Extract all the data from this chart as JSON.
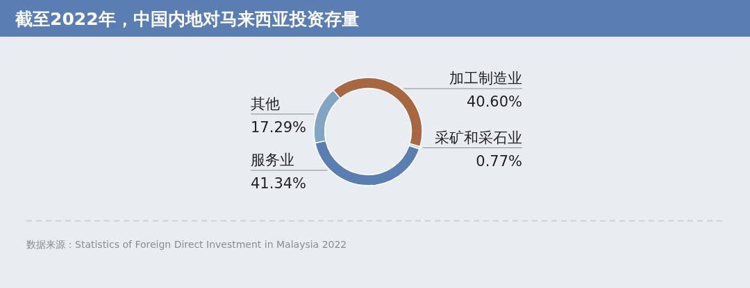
{
  "chart_data": {
    "type": "donut",
    "title": "截至2022年，中国内地对马来西亚投资存量",
    "categories": [
      "加工制造业",
      "采矿和采石业",
      "服务业",
      "其他"
    ],
    "values": [
      40.6,
      0.77,
      41.34,
      17.29
    ],
    "colors": [
      "#a66742",
      "#c9ced6",
      "#5a7db2",
      "#82a5c3"
    ],
    "value_labels": [
      "40.60%",
      "0.77%",
      "41.34%",
      "17.29%"
    ],
    "annotations": [
      "数据来源：Statistics of Foreign Direct Investment in Malaysia 2022"
    ]
  }
}
